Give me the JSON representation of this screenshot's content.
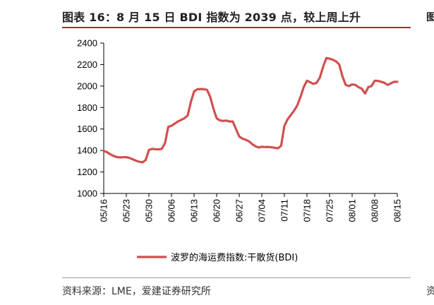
{
  "header": {
    "title": "图表 16：8 月 15 日 BDI 指数为 2039 点，较上周上升"
  },
  "footer": {
    "source": "资料来源：LME，爱建证券研究所"
  },
  "edge": {
    "right_top": "图",
    "right_bottom": "资"
  },
  "chart_data": {
    "type": "line",
    "title": "图表 16：8 月 15 日 BDI 指数为 2039 点，较上周上升",
    "xlabel": "",
    "ylabel": "",
    "ylim": [
      1000,
      2400
    ],
    "yticks": [
      1000,
      1200,
      1400,
      1600,
      1800,
      2000,
      2200,
      2400
    ],
    "xrange": [
      0,
      91
    ],
    "xticks": [
      {
        "label": "05/16",
        "x": 0
      },
      {
        "label": "05/23",
        "x": 7
      },
      {
        "label": "05/30",
        "x": 14
      },
      {
        "label": "06/06",
        "x": 21
      },
      {
        "label": "06/13",
        "x": 28
      },
      {
        "label": "06/20",
        "x": 35
      },
      {
        "label": "06/27",
        "x": 42
      },
      {
        "label": "07/04",
        "x": 49
      },
      {
        "label": "07/11",
        "x": 56
      },
      {
        "label": "07/18",
        "x": 63
      },
      {
        "label": "07/25",
        "x": 70
      },
      {
        "label": "08/01",
        "x": 77
      },
      {
        "label": "08/08",
        "x": 84
      },
      {
        "label": "08/15",
        "x": 91
      }
    ],
    "grid": false,
    "legend_position": "bottom-center",
    "series": [
      {
        "name": "波罗的海运费指数:干散货(BDI)",
        "color": "#d0504e",
        "x": [
          0,
          1,
          2,
          3,
          4,
          5,
          6,
          7,
          8,
          9,
          10,
          11,
          12,
          13,
          14,
          15,
          16,
          17,
          18,
          19,
          20,
          21,
          22,
          23,
          24,
          25,
          26,
          27,
          28,
          29,
          30,
          31,
          32,
          33,
          34,
          35,
          36,
          37,
          38,
          39,
          40,
          41,
          42,
          43,
          44,
          45,
          46,
          47,
          48,
          49,
          50,
          51,
          52,
          53,
          54,
          55,
          56,
          57,
          58,
          59,
          60,
          61,
          62,
          63,
          64,
          65,
          66,
          67,
          68,
          69,
          70,
          71,
          72,
          73,
          74,
          75,
          76,
          77,
          78,
          79,
          80,
          81,
          82,
          83,
          84,
          85,
          86,
          87,
          88,
          89,
          90,
          91
        ],
        "values": [
          1395,
          1385,
          1365,
          1350,
          1340,
          1335,
          1337,
          1338,
          1330,
          1318,
          1305,
          1295,
          1290,
          1310,
          1405,
          1415,
          1412,
          1410,
          1415,
          1470,
          1620,
          1630,
          1650,
          1670,
          1685,
          1700,
          1725,
          1850,
          1950,
          1970,
          1972,
          1970,
          1965,
          1900,
          1790,
          1700,
          1680,
          1675,
          1678,
          1670,
          1670,
          1600,
          1530,
          1510,
          1500,
          1485,
          1460,
          1440,
          1428,
          1435,
          1432,
          1433,
          1430,
          1425,
          1420,
          1445,
          1630,
          1690,
          1730,
          1770,
          1820,
          1900,
          1990,
          2050,
          2035,
          2020,
          2030,
          2080,
          2180,
          2260,
          2255,
          2245,
          2230,
          2200,
          2090,
          2010,
          2000,
          2015,
          2010,
          1990,
          1975,
          1930,
          1990,
          2000,
          2050,
          2048,
          2040,
          2030,
          2010,
          2025,
          2040,
          2039
        ]
      }
    ]
  }
}
